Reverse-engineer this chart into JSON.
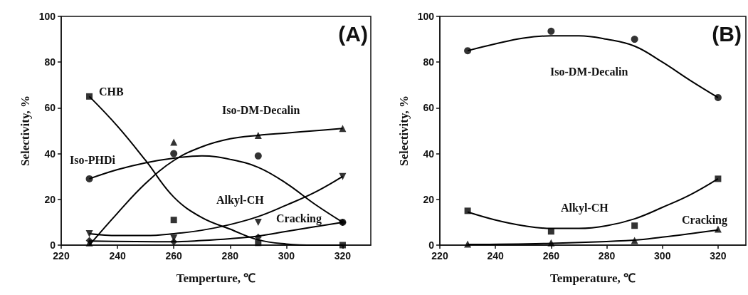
{
  "chart_data": [
    {
      "type": "scatter",
      "xlabel": "Temperture, ℃",
      "ylabel": "Selectivity, %",
      "xlim": [
        220,
        330
      ],
      "xticks": [
        220,
        240,
        260,
        280,
        300,
        320
      ],
      "ylim": [
        0,
        100
      ],
      "yticks": [
        0,
        20,
        40,
        60,
        80,
        100
      ],
      "grid": false,
      "series": [
        {
          "type": "scatter",
          "marker": "square",
          "color": "#000000",
          "x": [
            230,
            260,
            290,
            320
          ],
          "values": [
            65,
            11,
            1,
            0
          ]
        },
        {
          "type": "scatter",
          "marker": "circle",
          "color": "#000000",
          "x": [
            230,
            260,
            290,
            320
          ],
          "values": [
            29,
            40,
            39,
            10
          ]
        },
        {
          "type": "scatter",
          "marker": "triangle",
          "color": "#000000",
          "x": [
            230,
            260,
            290,
            320
          ],
          "values": [
            1,
            45,
            48,
            51
          ]
        },
        {
          "type": "scatter",
          "marker": "triangle_down",
          "color": "#000000",
          "x": [
            230,
            260,
            290,
            320
          ],
          "values": [
            5,
            3,
            10,
            30
          ]
        },
        {
          "type": "scatter",
          "marker": "diamond",
          "color": "#000000",
          "x": [
            230,
            260,
            290,
            320
          ],
          "values": [
            2,
            1.5,
            3.5,
            10
          ]
        },
        {
          "type": "line",
          "marker": "none",
          "color": "#000000",
          "x": [
            230,
            240,
            250,
            260,
            270,
            280,
            290,
            300,
            310,
            320
          ],
          "values": [
            65,
            52,
            37,
            21,
            12,
            7,
            2.3,
            0.5,
            0,
            0
          ]
        },
        {
          "type": "line",
          "marker": "none",
          "color": "#000000",
          "x": [
            230,
            240,
            250,
            260,
            270,
            280,
            290,
            300,
            310,
            320
          ],
          "values": [
            29,
            33,
            36,
            38,
            39,
            37.5,
            34,
            27,
            18,
            10
          ]
        },
        {
          "type": "line",
          "marker": "none",
          "color": "#000000",
          "x": [
            230,
            240,
            250,
            260,
            270,
            280,
            290,
            300,
            310,
            320
          ],
          "values": [
            0,
            14,
            27,
            37,
            43,
            46.5,
            48,
            49,
            50,
            51
          ]
        },
        {
          "type": "line",
          "marker": "none",
          "color": "#000000",
          "x": [
            230,
            240,
            250,
            260,
            270,
            280,
            290,
            300,
            310,
            320
          ],
          "values": [
            5,
            4.2,
            4.2,
            5,
            6.5,
            9,
            12.5,
            17.5,
            23,
            30
          ]
        },
        {
          "type": "line",
          "marker": "none",
          "color": "#000000",
          "x": [
            230,
            260,
            270,
            280,
            290,
            300,
            310,
            320
          ],
          "values": [
            1.8,
            1.5,
            2,
            2.8,
            4,
            6,
            8,
            10
          ]
        }
      ],
      "annotations": [
        "(A)",
        "CHB",
        "Iso-PHDi",
        "Iso-DM-Decalin",
        "Alkyl-CH",
        "Cracking"
      ]
    },
    {
      "type": "scatter",
      "xlabel": "Temperature, ℃",
      "ylabel": "Selectivity, %",
      "xlim": [
        220,
        330
      ],
      "xticks": [
        220,
        240,
        260,
        280,
        300,
        320
      ],
      "ylim": [
        0,
        100
      ],
      "yticks": [
        0,
        20,
        40,
        60,
        80,
        100
      ],
      "grid": false,
      "series": [
        {
          "type": "scatter",
          "marker": "circle",
          "color": "#000000",
          "x": [
            230,
            260,
            290,
            320
          ],
          "values": [
            85,
            93.5,
            90,
            64.5
          ]
        },
        {
          "type": "scatter",
          "marker": "square",
          "color": "#000000",
          "x": [
            230,
            260,
            290,
            320
          ],
          "values": [
            15,
            6,
            8.5,
            29
          ]
        },
        {
          "type": "scatter",
          "marker": "triangle",
          "color": "#000000",
          "x": [
            230,
            260,
            290,
            320
          ],
          "values": [
            0.5,
            1,
            2,
            7
          ]
        },
        {
          "type": "line",
          "marker": "none",
          "color": "#000000",
          "x": [
            230,
            240,
            250,
            260,
            270,
            280,
            290,
            300,
            310,
            320
          ],
          "values": [
            85,
            88,
            90.5,
            91.5,
            91.5,
            90,
            87,
            80,
            72,
            64.5
          ]
        },
        {
          "type": "line",
          "marker": "none",
          "color": "#000000",
          "x": [
            230,
            240,
            250,
            260,
            270,
            280,
            290,
            300,
            310,
            320
          ],
          "values": [
            14.5,
            11,
            8.5,
            7.3,
            7.3,
            8.5,
            11.5,
            16.5,
            22,
            29
          ]
        },
        {
          "type": "line",
          "marker": "none",
          "color": "#000000",
          "x": [
            230,
            260,
            290,
            300,
            310,
            320
          ],
          "values": [
            0.3,
            0.8,
            2.2,
            3.5,
            5,
            6.6
          ]
        }
      ],
      "annotations": [
        "(B)",
        "Iso-DM-Decalin",
        "Alkyl-CH",
        "Cracking"
      ]
    }
  ]
}
